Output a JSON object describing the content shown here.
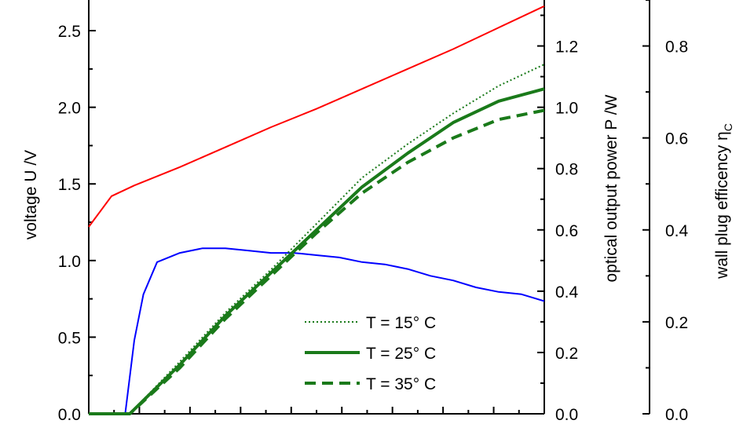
{
  "chart_data": {
    "type": "line",
    "x_range": [
      0,
      1
    ],
    "axes": {
      "left": {
        "label": "voltage U /V",
        "range": [
          0,
          2.7
        ],
        "ticks": [
          0.0,
          0.5,
          1.0,
          1.5,
          2.0,
          2.5
        ],
        "tick_labels": [
          "0.0",
          "0.5",
          "1.0",
          "1.5",
          "2.0",
          "2.5"
        ]
      },
      "middle": {
        "label": "optical output power P /W",
        "range": [
          0,
          1.35
        ],
        "ticks": [
          0.0,
          0.2,
          0.4,
          0.6,
          0.8,
          1.0,
          1.2
        ],
        "tick_labels": [
          "0.0",
          "0.2",
          "0.4",
          "0.6",
          "0.8",
          "1.0",
          "1.2"
        ]
      },
      "right": {
        "label_main": "wall plug efficency η",
        "label_sub": "C",
        "range": [
          0,
          0.9
        ],
        "ticks": [
          0.0,
          0.2,
          0.4,
          0.6,
          0.8
        ],
        "tick_labels": [
          "0.0",
          "0.2",
          "0.4",
          "0.6",
          "0.8"
        ]
      }
    },
    "series": [
      {
        "axis": "left",
        "color": "#ff0000",
        "style": "solid",
        "x": [
          0.0,
          0.05,
          0.1,
          0.2,
          0.3,
          0.4,
          0.5,
          0.6,
          0.7,
          0.8,
          0.9,
          1.0
        ],
        "y": [
          1.22,
          1.42,
          1.49,
          1.61,
          1.74,
          1.87,
          1.99,
          2.12,
          2.25,
          2.38,
          2.52,
          2.66
        ]
      },
      {
        "axis": "right",
        "color": "#0000ff",
        "style": "solid",
        "x": [
          0.0,
          0.08,
          0.085,
          0.1,
          0.12,
          0.15,
          0.2,
          0.25,
          0.3,
          0.35,
          0.4,
          0.45,
          0.5,
          0.55,
          0.6,
          0.65,
          0.7,
          0.75,
          0.8,
          0.85,
          0.9,
          0.95,
          1.0
        ],
        "y": [
          0.0,
          0.0,
          0.04,
          0.16,
          0.26,
          0.33,
          0.35,
          0.36,
          0.36,
          0.355,
          0.35,
          0.35,
          0.345,
          0.34,
          0.33,
          0.325,
          0.315,
          0.3,
          0.29,
          0.275,
          0.265,
          0.26,
          0.245
        ]
      },
      {
        "name": "T = 15° C",
        "axis": "middle",
        "color": "#1a7a1a",
        "style": "dotted",
        "x": [
          0.0,
          0.09,
          0.2,
          0.3,
          0.4,
          0.5,
          0.6,
          0.7,
          0.8,
          0.9,
          1.0
        ],
        "y": [
          0.0,
          0.0,
          0.17,
          0.33,
          0.47,
          0.62,
          0.77,
          0.88,
          0.98,
          1.07,
          1.14
        ]
      },
      {
        "name": "T = 25° C",
        "axis": "middle",
        "color": "#1a7a1a",
        "style": "solid",
        "x": [
          0.0,
          0.09,
          0.2,
          0.3,
          0.4,
          0.5,
          0.6,
          0.7,
          0.8,
          0.9,
          1.0
        ],
        "y": [
          0.0,
          0.0,
          0.16,
          0.32,
          0.46,
          0.6,
          0.74,
          0.85,
          0.95,
          1.02,
          1.06
        ]
      },
      {
        "name": "T = 35° C",
        "axis": "middle",
        "color": "#1a7a1a",
        "style": "dashed",
        "x": [
          0.0,
          0.09,
          0.2,
          0.3,
          0.4,
          0.5,
          0.6,
          0.7,
          0.8,
          0.9,
          1.0
        ],
        "y": [
          0.0,
          0.0,
          0.15,
          0.31,
          0.45,
          0.59,
          0.72,
          0.82,
          0.9,
          0.96,
          0.99
        ]
      }
    ],
    "legend": {
      "placement": "bottom-center",
      "entries": [
        "T = 15° C",
        "T = 25° C",
        "T = 35° C"
      ]
    },
    "grid": false
  }
}
